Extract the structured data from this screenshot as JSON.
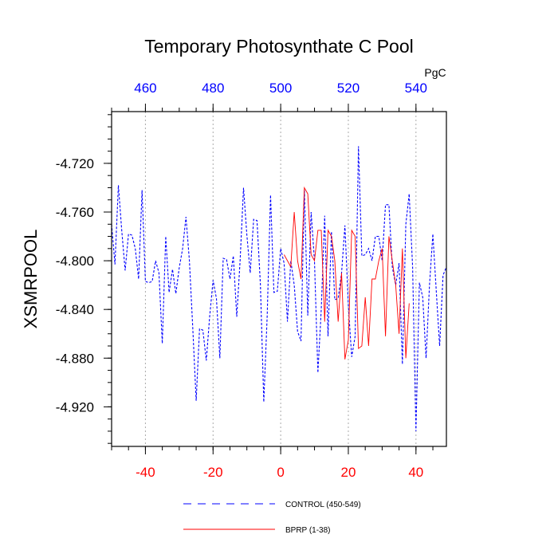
{
  "chart_data": {
    "type": "line",
    "title": "Temporary Photosynthate C Pool",
    "ylabel": "XSMRPOOL",
    "units_label": "PgC",
    "xlim": [
      -50,
      49
    ],
    "top_xlim": [
      450,
      549
    ],
    "ylim": [
      -4.9525,
      -4.6775
    ],
    "bottom_ticks": [
      -40,
      -20,
      0,
      20,
      40
    ],
    "bottom_tick_labels": [
      "-40",
      "-20",
      "0",
      "20",
      "40"
    ],
    "top_ticks": [
      460,
      480,
      500,
      520,
      540
    ],
    "top_tick_labels": [
      "460",
      "480",
      "500",
      "520",
      "540"
    ],
    "y_ticks": [
      -4.72,
      -4.76,
      -4.8,
      -4.84,
      -4.88,
      -4.92
    ],
    "y_tick_labels": [
      "-4.720",
      "-4.760",
      "-4.800",
      "-4.840",
      "-4.880",
      "-4.920"
    ],
    "grid": "vertical dotted at labeled ticks",
    "legend_position": "bottom",
    "series": [
      {
        "name": "CONTROL (450-549)",
        "color": "#0000ff",
        "style": "dashed",
        "x": [
          -50,
          -49,
          -48,
          -47,
          -46,
          -45,
          -44,
          -43,
          -42,
          -41,
          -40,
          -39,
          -38,
          -37,
          -36,
          -35,
          -34,
          -33,
          -32,
          -31,
          -30,
          -29,
          -28,
          -27,
          -26,
          -25,
          -24,
          -23,
          -22,
          -21,
          -20,
          -19,
          -18,
          -17,
          -16,
          -15,
          -14,
          -13,
          -12,
          -11,
          -10,
          -9,
          -8,
          -7,
          -6,
          -5,
          -4,
          -3,
          -2,
          -1,
          0,
          1,
          2,
          3,
          4,
          5,
          6,
          7,
          8,
          9,
          10,
          11,
          12,
          13,
          14,
          15,
          16,
          17,
          18,
          19,
          20,
          21,
          22,
          23,
          24,
          25,
          26,
          27,
          28,
          29,
          30,
          31,
          32,
          33,
          34,
          35,
          36,
          37,
          38,
          39,
          40,
          41,
          42,
          43,
          44,
          45,
          46,
          47,
          48,
          49
        ],
        "y": [
          -4.77,
          -4.803,
          -4.738,
          -4.775,
          -4.808,
          -4.778,
          -4.779,
          -4.79,
          -4.815,
          -4.742,
          -4.817,
          -4.818,
          -4.817,
          -4.8,
          -4.81,
          -4.868,
          -4.78,
          -4.826,
          -4.807,
          -4.827,
          -4.806,
          -4.79,
          -4.764,
          -4.8,
          -4.855,
          -4.915,
          -4.856,
          -4.857,
          -4.882,
          -4.846,
          -4.816,
          -4.831,
          -4.88,
          -4.798,
          -4.799,
          -4.815,
          -4.796,
          -4.846,
          -4.8,
          -4.74,
          -4.779,
          -4.81,
          -4.766,
          -4.767,
          -4.82,
          -4.916,
          -4.845,
          -4.746,
          -4.826,
          -4.825,
          -4.79,
          -4.802,
          -4.85,
          -4.8,
          -4.82,
          -4.858,
          -4.866,
          -4.742,
          -4.845,
          -4.76,
          -4.8,
          -4.892,
          -4.84,
          -4.763,
          -4.862,
          -4.776,
          -4.832,
          -4.831,
          -4.81,
          -4.771,
          -4.837,
          -4.879,
          -4.862,
          -4.706,
          -4.796,
          -4.795,
          -4.79,
          -4.8,
          -4.78,
          -4.78,
          -4.8,
          -4.754,
          -4.754,
          -4.805,
          -4.82,
          -4.802,
          -4.885,
          -4.77,
          -4.745,
          -4.805,
          -4.94,
          -4.818,
          -4.83,
          -4.88,
          -4.82,
          -4.778,
          -4.825,
          -4.87,
          -4.812,
          -4.805
        ]
      },
      {
        "name": "BPRP (1-38)",
        "color": "#ff0000",
        "style": "solid",
        "x": [
          1,
          2,
          3,
          4,
          5,
          6,
          7,
          8,
          9,
          10,
          11,
          12,
          13,
          14,
          15,
          16,
          17,
          18,
          19,
          20,
          21,
          22,
          23,
          24,
          25,
          26,
          27,
          28,
          29,
          30,
          31,
          32,
          33,
          34,
          35,
          36,
          37,
          38
        ],
        "y": [
          -4.795,
          -4.8,
          -4.805,
          -4.76,
          -4.8,
          -4.815,
          -4.74,
          -4.745,
          -4.795,
          -4.8,
          -4.775,
          -4.775,
          -4.85,
          -4.775,
          -4.78,
          -4.8,
          -4.85,
          -4.81,
          -4.881,
          -4.865,
          -4.775,
          -4.78,
          -4.872,
          -4.87,
          -4.83,
          -4.87,
          -4.815,
          -4.815,
          -4.8,
          -4.79,
          -4.862,
          -4.78,
          -4.8,
          -4.82,
          -4.86,
          -4.79,
          -4.88,
          -4.835
        ]
      }
    ]
  }
}
